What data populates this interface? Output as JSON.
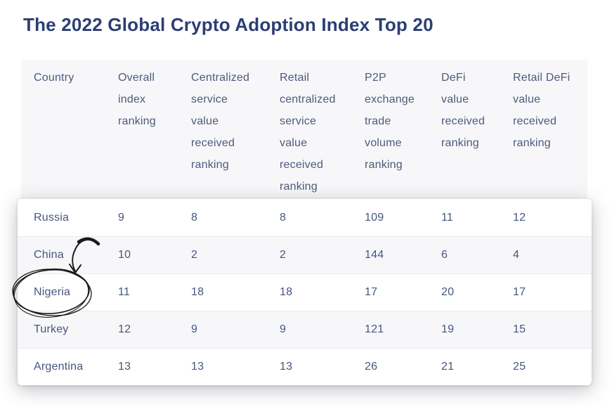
{
  "page": {
    "title": "The 2022 Global Crypto Adoption Index Top 20"
  },
  "chart_data": {
    "type": "table",
    "title": "The 2022 Global Crypto Adoption Index Top 20",
    "columns": [
      "Country",
      "Overall index ranking",
      "Centralized service value received ranking",
      "Retail centralized service value received ranking",
      "P2P exchange trade volume ranking",
      "DeFi value received ranking",
      "Retail DeFi value received ranking"
    ],
    "rows": [
      {
        "country": "Russia",
        "values": [
          "9",
          "8",
          "8",
          "109",
          "11",
          "12"
        ]
      },
      {
        "country": "China",
        "values": [
          "10",
          "2",
          "2",
          "144",
          "6",
          "4"
        ]
      },
      {
        "country": "Nigeria",
        "values": [
          "11",
          "18",
          "18",
          "17",
          "20",
          "17"
        ]
      },
      {
        "country": "Turkey",
        "values": [
          "12",
          "9",
          "9",
          "121",
          "19",
          "15"
        ]
      },
      {
        "country": "Argentina",
        "values": [
          "13",
          "13",
          "13",
          "26",
          "21",
          "25"
        ]
      }
    ],
    "annotation": {
      "type": "hand-drawn circle with curved arrow",
      "target": "Nigeria"
    },
    "layout_hints": {
      "highlighted_card_rows": [
        "Russia",
        "China",
        "Nigeria",
        "Turkey",
        "Argentina"
      ],
      "striped_rows": [
        "China",
        "Turkey"
      ]
    }
  },
  "colors": {
    "page-bg": "#ffffff",
    "card-bg": "#ffffff",
    "title": "#2c3e73",
    "header-text": "#4c5a7d",
    "cell-text": "#46567e",
    "stripe": "#f7f7f9",
    "divider": "#ebebef",
    "ink": "#1a1a1a"
  }
}
